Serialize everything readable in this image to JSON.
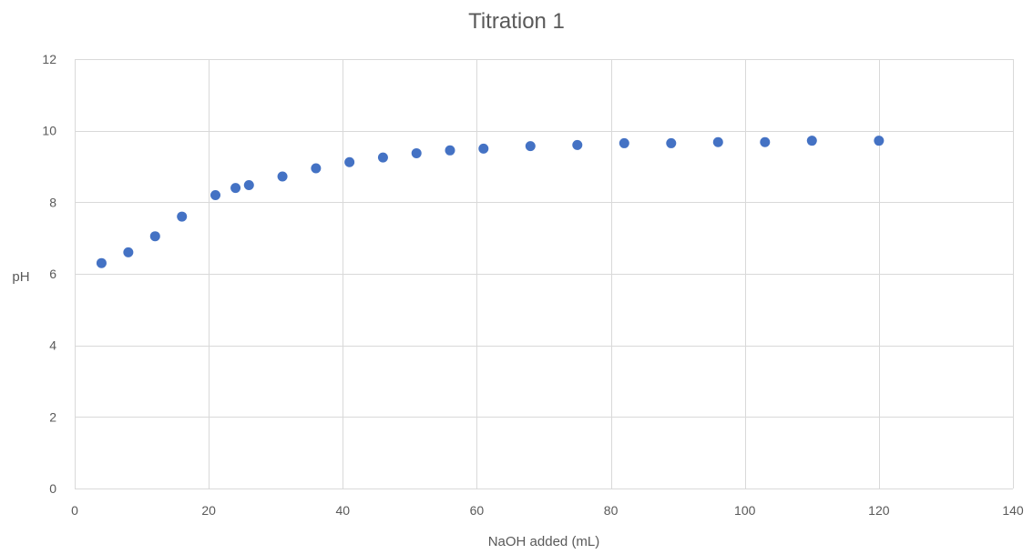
{
  "chart_data": {
    "type": "scatter",
    "title": "Titration 1",
    "xlabel": "NaOH added (mL)",
    "ylabel": "pH",
    "xlim": [
      0,
      140
    ],
    "ylim": [
      0,
      12
    ],
    "x_ticks": [
      0,
      20,
      40,
      60,
      80,
      100,
      120,
      140
    ],
    "y_ticks": [
      0,
      2,
      4,
      6,
      8,
      10,
      12
    ],
    "grid": true,
    "legend": "none",
    "marker_color": "#4472c4",
    "series": [
      {
        "x": [
          4,
          8,
          12,
          16,
          21,
          24,
          26,
          31,
          36,
          41,
          46,
          51,
          56,
          61,
          68,
          75,
          82,
          89,
          96,
          103,
          110,
          120
        ],
        "y": [
          6.3,
          6.6,
          7.05,
          7.6,
          8.2,
          8.4,
          8.48,
          8.72,
          8.95,
          9.12,
          9.25,
          9.37,
          9.45,
          9.5,
          9.57,
          9.6,
          9.65,
          9.65,
          9.68,
          9.68,
          9.72,
          9.72
        ]
      }
    ]
  }
}
